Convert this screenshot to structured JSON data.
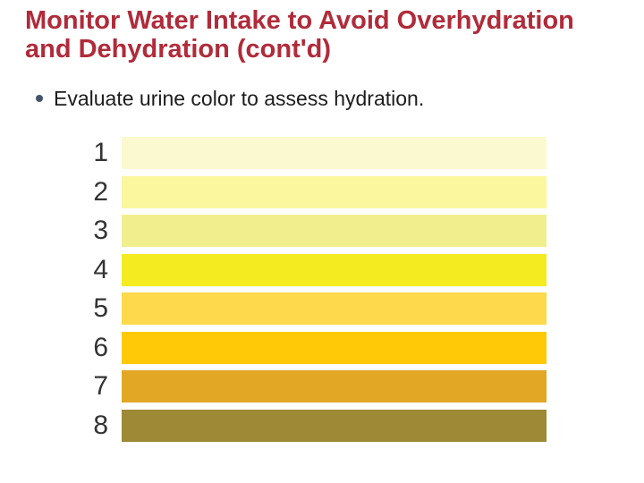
{
  "slide": {
    "title": "Monitor Water Intake to Avoid Overhydration and Dehydration (cont'd)",
    "title_color": "#B02B3A",
    "bullet": "Evaluate urine color to assess hydration.",
    "bullet_dot_color": "#44546A"
  },
  "chart": {
    "name": "urine-color-scale",
    "rows": [
      {
        "level": "1",
        "color": "#FBF9CF"
      },
      {
        "level": "2",
        "color": "#FBF79F"
      },
      {
        "level": "3",
        "color": "#F1EF8D"
      },
      {
        "level": "4",
        "color": "#F4EB20"
      },
      {
        "level": "5",
        "color": "#FED94B"
      },
      {
        "level": "6",
        "color": "#FFC908"
      },
      {
        "level": "7",
        "color": "#E2A724"
      },
      {
        "level": "8",
        "color": "#9D8936"
      }
    ]
  }
}
